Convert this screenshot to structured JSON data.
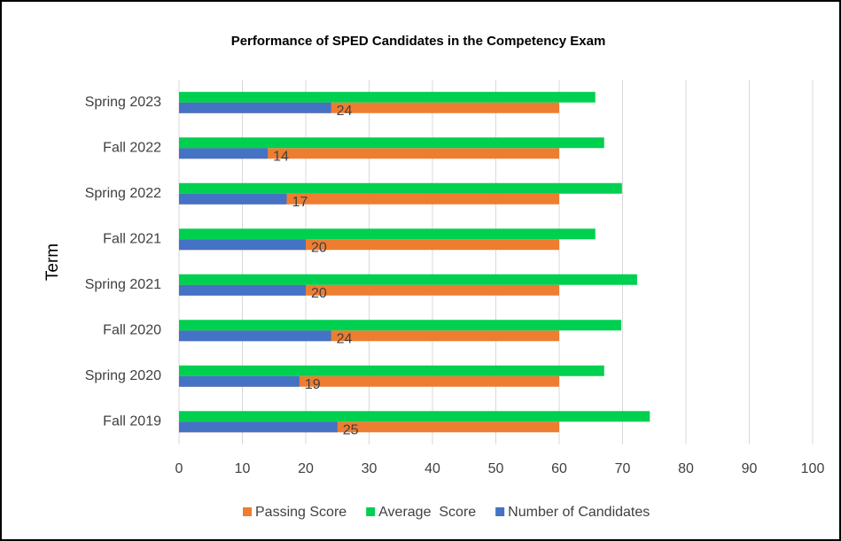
{
  "chart_data": {
    "type": "hbar",
    "title": "Performance of SPED Candidates in the Competency Exam",
    "y_label": "Term",
    "categories": [
      "Spring 2023",
      "Fall 2022",
      "Spring 2022",
      "Fall 2021",
      "Spring 2021",
      "Fall 2020",
      "Spring 2020",
      "Fall 2019"
    ],
    "series": [
      {
        "name": "Passing Score",
        "color": "#ed7d31",
        "values": [
          60,
          60,
          60,
          60,
          60,
          60,
          60,
          60
        ]
      },
      {
        "name": "Average  Score",
        "color": "#00d050",
        "values": [
          65.7,
          67.1,
          69.9,
          65.7,
          72.3,
          69.8,
          67.1,
          74.3
        ]
      },
      {
        "name": "Number of Candidates",
        "color": "#4472c4",
        "values": [
          24,
          14,
          17,
          20,
          20,
          24,
          19,
          25
        ],
        "data_labels": true
      }
    ],
    "xlim": [
      0,
      100
    ],
    "xticks": [
      0,
      10,
      20,
      30,
      40,
      50,
      60,
      70,
      80,
      90,
      100
    ],
    "grid": true,
    "legend": "bottom"
  }
}
